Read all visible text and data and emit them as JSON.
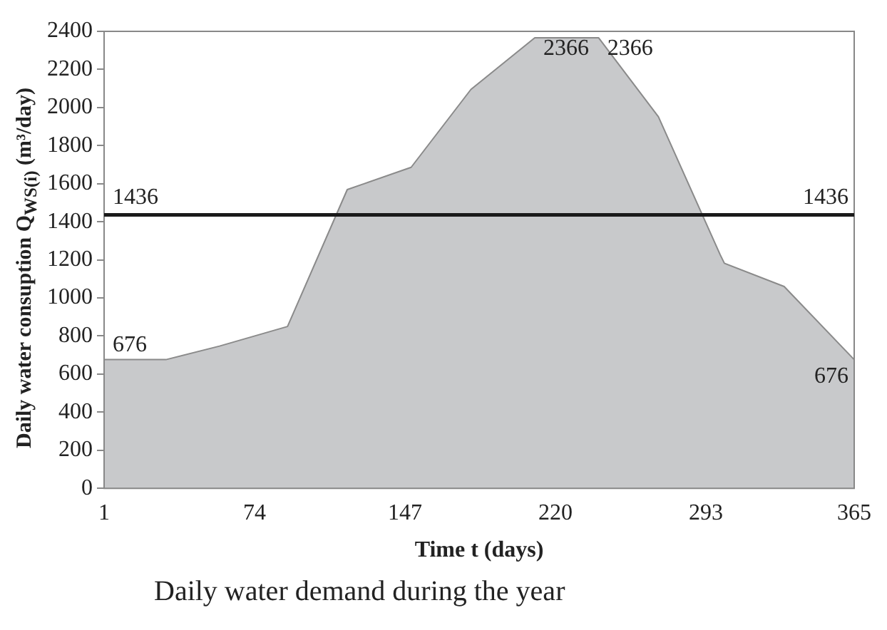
{
  "chart_data": {
    "type": "area",
    "title": "Daily water demand during the year",
    "xlabel": "Time t (days)",
    "ylabel": "Daily water consuption Q$_{WS(i)}$ (m³/day)",
    "x": [
      1,
      31,
      57,
      90,
      119,
      150,
      179,
      210,
      241,
      270,
      300,
      302,
      331,
      365
    ],
    "series": [
      {
        "color": "#c8c9cb",
        "values": [
          676,
          676,
          747,
          850,
          1569,
          1686,
          2095,
          2366,
          2366,
          1951,
          1226,
          1182,
          1060,
          676
        ]
      }
    ],
    "xlim": [
      1,
      365
    ],
    "xticks": [
      1,
      74,
      147,
      220,
      293,
      365
    ],
    "ylim": [
      0,
      2400
    ],
    "yticks": [
      0,
      200,
      400,
      600,
      800,
      1000,
      1200,
      1400,
      1600,
      1800,
      2000,
      2200,
      2400
    ],
    "grid": false,
    "legend": false,
    "ref_lines": [
      {
        "axis": "y",
        "value": 1436,
        "label": "1436",
        "color": "#1a1a1a"
      }
    ],
    "annotations": [
      {
        "text": "676",
        "x": 1,
        "y": 676
      },
      {
        "text": "2366",
        "x": 210,
        "y": 2366
      },
      {
        "text": "2366",
        "x": 241,
        "y": 2366
      },
      {
        "text": "676",
        "x": 365,
        "y": 676
      }
    ]
  }
}
